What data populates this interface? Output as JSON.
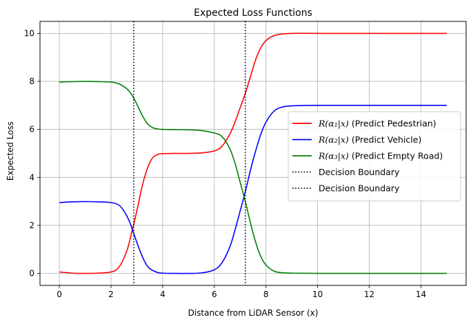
{
  "chart_data": {
    "type": "line",
    "title": "Expected Loss Functions",
    "xlabel": "Distance from LiDAR Sensor (x)",
    "ylabel": "Expected Loss",
    "xlim": [
      -0.75,
      15.75
    ],
    "ylim": [
      -0.5,
      10.5
    ],
    "xticks": [
      0,
      2,
      4,
      6,
      8,
      10,
      12,
      14
    ],
    "yticks": [
      0,
      2,
      4,
      6,
      8,
      10
    ],
    "grid": true,
    "legend_position": "center-right",
    "series": [
      {
        "name": "R(α1|x) (Predict Pedestrian)",
        "legend_math": "R(α₁|x)",
        "legend_text": " (Predict Pedestrian)",
        "color": "#ff0000",
        "x": [
          0,
          0.5,
          1,
          1.5,
          2,
          2.3,
          2.6,
          2.8,
          3.0,
          3.2,
          3.4,
          3.6,
          3.8,
          4.0,
          4.5,
          5,
          5.5,
          6,
          6.3,
          6.6,
          6.8,
          7.0,
          7.2,
          7.4,
          7.6,
          7.8,
          8.0,
          8.3,
          8.6,
          9,
          10,
          12,
          15
        ],
        "y": [
          0.06,
          0.01,
          0.0,
          0.01,
          0.06,
          0.25,
          0.9,
          1.7,
          2.6,
          3.6,
          4.35,
          4.8,
          4.95,
          4.99,
          5.0,
          5.0,
          5.02,
          5.1,
          5.3,
          5.8,
          6.3,
          6.9,
          7.5,
          8.2,
          8.9,
          9.4,
          9.7,
          9.9,
          9.97,
          10.0,
          10.0,
          10.0,
          10.0
        ]
      },
      {
        "name": "R(α2|x) (Predict Vehicle)",
        "legend_math": "R(α₂|x)",
        "legend_text": " (Predict Vehicle)",
        "color": "#0000ff",
        "x": [
          0,
          0.5,
          1,
          1.5,
          2,
          2.3,
          2.5,
          2.7,
          2.9,
          3.1,
          3.3,
          3.5,
          3.8,
          4.0,
          4.5,
          5,
          5.5,
          6,
          6.3,
          6.6,
          6.8,
          7.0,
          7.2,
          7.4,
          7.6,
          7.8,
          8.0,
          8.3,
          8.6,
          9,
          10,
          12,
          15
        ],
        "y": [
          2.95,
          2.98,
          2.99,
          2.98,
          2.95,
          2.85,
          2.6,
          2.2,
          1.6,
          1.0,
          0.5,
          0.2,
          0.04,
          0.01,
          0.0,
          0.0,
          0.02,
          0.15,
          0.45,
          1.1,
          1.8,
          2.6,
          3.4,
          4.3,
          5.1,
          5.8,
          6.3,
          6.75,
          6.92,
          6.98,
          7.0,
          7.0,
          7.0
        ]
      },
      {
        "name": "R(α3|x) (Predict Empty Road)",
        "legend_math": "R(α₃|x)",
        "legend_text": " (Predict Empty Road)",
        "color": "#008000",
        "x": [
          0,
          0.5,
          1,
          1.5,
          2,
          2.3,
          2.6,
          2.8,
          3.0,
          3.2,
          3.4,
          3.6,
          3.8,
          4.0,
          4.5,
          5,
          5.5,
          6,
          6.3,
          6.6,
          6.8,
          7.0,
          7.2,
          7.4,
          7.6,
          7.8,
          8.0,
          8.3,
          8.6,
          9,
          10,
          12,
          15
        ],
        "y": [
          7.97,
          7.99,
          8.0,
          7.99,
          7.97,
          7.9,
          7.7,
          7.45,
          7.05,
          6.6,
          6.25,
          6.08,
          6.02,
          6.0,
          5.99,
          5.98,
          5.95,
          5.85,
          5.7,
          5.2,
          4.6,
          3.8,
          3.0,
          2.1,
          1.3,
          0.7,
          0.35,
          0.1,
          0.03,
          0.01,
          0.0,
          0.0,
          0.0
        ]
      },
      {
        "name": "Decision Boundary",
        "legend_text": "Decision Boundary",
        "color": "#000000",
        "style": "dotted",
        "vline_x": 2.88
      },
      {
        "name": "Decision Boundary",
        "legend_text": "Decision Boundary",
        "color": "#000000",
        "style": "dotted",
        "vline_x": 7.2
      }
    ]
  }
}
